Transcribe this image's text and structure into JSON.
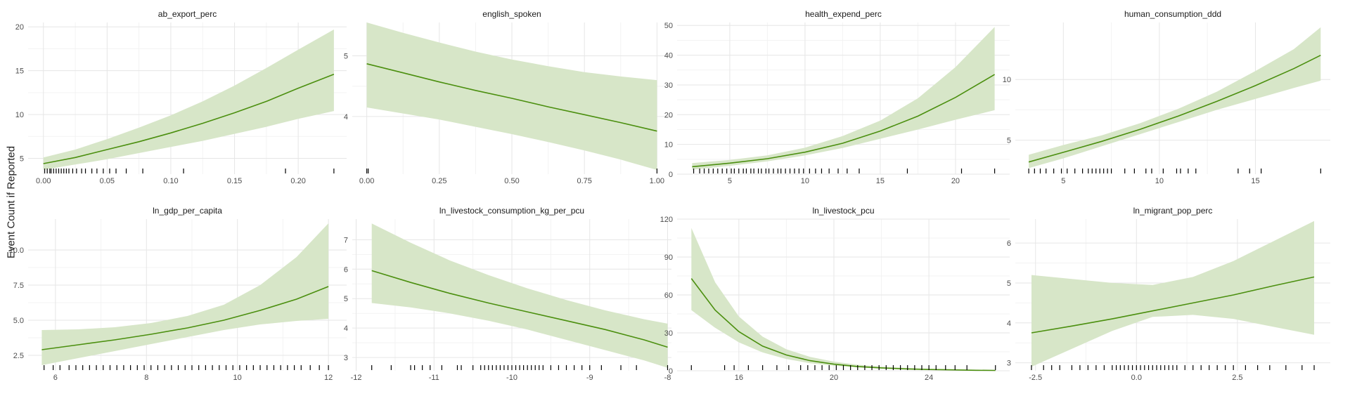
{
  "ylabel": "Event Count if Reported",
  "colors": {
    "line": "#4b8f0f",
    "band": "#d7e6c8",
    "grid_major": "#e6e6e6",
    "grid_minor": "#f3f3f3",
    "rug": "#000000",
    "text": "#4d4d4d",
    "title": "#1a1a1a"
  },
  "chart_data": [
    {
      "type": "line",
      "title": "ab_export_perc",
      "xlim": [
        -0.012,
        0.238
      ],
      "ylim": [
        3.2,
        20.5
      ],
      "xticks": [
        {
          "v": 0,
          "label": "0.00"
        },
        {
          "v": 0.05,
          "label": "0.05"
        },
        {
          "v": 0.1,
          "label": "0.10"
        },
        {
          "v": 0.15,
          "label": "0.15"
        },
        {
          "v": 0.2,
          "label": "0.20"
        }
      ],
      "yticks": [
        {
          "v": 5,
          "label": "5"
        },
        {
          "v": 10,
          "label": "10"
        },
        {
          "v": 15,
          "label": "15"
        },
        {
          "v": 20,
          "label": "20"
        }
      ],
      "x": [
        0,
        0.025,
        0.05,
        0.075,
        0.1,
        0.125,
        0.15,
        0.175,
        0.2,
        0.228
      ],
      "y": [
        4.4,
        5.1,
        6.0,
        6.9,
        7.9,
        9.0,
        10.2,
        11.5,
        13.0,
        14.6
      ],
      "lower": [
        3.7,
        4.3,
        4.9,
        5.6,
        6.3,
        7.0,
        7.8,
        8.6,
        9.5,
        10.4
      ],
      "upper": [
        5.1,
        6.0,
        7.2,
        8.5,
        9.9,
        11.5,
        13.3,
        15.3,
        17.4,
        19.7
      ],
      "rug": [
        0.001,
        0.003,
        0.005,
        0.006,
        0.008,
        0.01,
        0.012,
        0.014,
        0.016,
        0.018,
        0.02,
        0.023,
        0.026,
        0.03,
        0.033,
        0.038,
        0.042,
        0.047,
        0.052,
        0.057,
        0.065,
        0.078,
        0.11,
        0.19,
        0.228
      ]
    },
    {
      "type": "line",
      "title": "english_spoken",
      "xlim": [
        -0.05,
        1.05
      ],
      "ylim": [
        3.05,
        5.55
      ],
      "xticks": [
        {
          "v": 0,
          "label": "0.00"
        },
        {
          "v": 0.25,
          "label": "0.25"
        },
        {
          "v": 0.5,
          "label": "0.50"
        },
        {
          "v": 0.75,
          "label": "0.75"
        },
        {
          "v": 1,
          "label": "1.00"
        }
      ],
      "yticks": [
        {
          "v": 4,
          "label": "4"
        },
        {
          "v": 5,
          "label": "5"
        }
      ],
      "x": [
        0,
        0.125,
        0.25,
        0.375,
        0.5,
        0.625,
        0.75,
        0.875,
        1
      ],
      "y": [
        4.87,
        4.72,
        4.57,
        4.43,
        4.3,
        4.16,
        4.03,
        3.9,
        3.76
      ],
      "lower": [
        4.15,
        4.05,
        3.95,
        3.83,
        3.71,
        3.58,
        3.44,
        3.29,
        3.12
      ],
      "upper": [
        5.55,
        5.38,
        5.22,
        5.07,
        4.94,
        4.83,
        4.73,
        4.66,
        4.6
      ],
      "rug": [
        0,
        0.005,
        1
      ]
    },
    {
      "type": "line",
      "title": "health_expend_perc",
      "xlim": [
        1.5,
        23.6
      ],
      "ylim": [
        0,
        51
      ],
      "xticks": [
        {
          "v": 5,
          "label": "5"
        },
        {
          "v": 10,
          "label": "10"
        },
        {
          "v": 15,
          "label": "15"
        },
        {
          "v": 20,
          "label": "20"
        }
      ],
      "yticks": [
        {
          "v": 0,
          "label": "0"
        },
        {
          "v": 10,
          "label": "10"
        },
        {
          "v": 20,
          "label": "20"
        },
        {
          "v": 30,
          "label": "30"
        },
        {
          "v": 40,
          "label": "40"
        },
        {
          "v": 50,
          "label": "50"
        }
      ],
      "x": [
        2.5,
        5,
        7.5,
        10,
        12.5,
        15,
        17.5,
        20,
        22.6
      ],
      "y": [
        2.5,
        3.7,
        5.2,
        7.4,
        10.4,
        14.5,
        19.5,
        25.8,
        33.5
      ],
      "lower": [
        1.5,
        2.8,
        4.3,
        6.3,
        8.8,
        11.9,
        15.0,
        18.3,
        21.5
      ],
      "upper": [
        3.7,
        4.8,
        6.3,
        8.9,
        12.8,
        18.0,
        25.5,
        36.0,
        49.5
      ],
      "rug": [
        2.6,
        3.0,
        3.3,
        3.6,
        3.9,
        4.2,
        4.5,
        4.8,
        5.1,
        5.3,
        5.6,
        5.9,
        6.1,
        6.4,
        6.6,
        6.9,
        7.1,
        7.4,
        7.6,
        7.9,
        8.2,
        8.4,
        8.7,
        9.0,
        9.3,
        9.6,
        9.9,
        10.3,
        10.7,
        11.1,
        11.6,
        12.2,
        12.8,
        13.6,
        16.8,
        20.4,
        22.6
      ]
    },
    {
      "type": "line",
      "title": "human_consumption_ddd",
      "xlim": [
        2.5,
        18.9
      ],
      "ylim": [
        2.2,
        14.7
      ],
      "xticks": [
        {
          "v": 5,
          "label": "5"
        },
        {
          "v": 10,
          "label": "10"
        },
        {
          "v": 15,
          "label": "15"
        }
      ],
      "yticks": [
        {
          "v": 5,
          "label": "5"
        },
        {
          "v": 10,
          "label": "10"
        }
      ],
      "x": [
        3.2,
        5,
        7,
        9,
        11,
        13,
        15,
        17,
        18.4
      ],
      "y": [
        3.2,
        4.0,
        4.9,
        5.9,
        7.0,
        8.2,
        9.5,
        10.9,
        12.0
      ],
      "lower": [
        2.7,
        3.5,
        4.5,
        5.5,
        6.5,
        7.5,
        8.4,
        9.3,
        9.9
      ],
      "upper": [
        3.8,
        4.6,
        5.4,
        6.4,
        7.6,
        9.0,
        10.7,
        12.5,
        14.3
      ],
      "rug": [
        3.2,
        3.5,
        3.8,
        4.1,
        4.5,
        4.9,
        5.2,
        5.6,
        6.0,
        6.3,
        6.5,
        6.7,
        6.9,
        7.1,
        7.3,
        7.5,
        8.2,
        8.7,
        9.3,
        9.6,
        10.2,
        10.9,
        11.1,
        11.5,
        11.9,
        14.1,
        14.7,
        15.3,
        18.4
      ]
    },
    {
      "type": "line",
      "title": "ln_gdp_per_capita",
      "xlim": [
        5.4,
        12.4
      ],
      "ylim": [
        1.4,
        12.2
      ],
      "xticks": [
        {
          "v": 6,
          "label": "6"
        },
        {
          "v": 8,
          "label": "8"
        },
        {
          "v": 10,
          "label": "10"
        },
        {
          "v": 12,
          "label": "12"
        }
      ],
      "yticks": [
        {
          "v": 2.5,
          "label": "2.5"
        },
        {
          "v": 5,
          "label": "5.0"
        },
        {
          "v": 7.5,
          "label": "7.5"
        },
        {
          "v": 10,
          "label": "10.0"
        }
      ],
      "x": [
        5.7,
        6.5,
        7.3,
        8.1,
        8.9,
        9.7,
        10.5,
        11.3,
        12
      ],
      "y": [
        2.9,
        3.25,
        3.6,
        4.0,
        4.45,
        5.0,
        5.7,
        6.5,
        7.4
      ],
      "lower": [
        1.8,
        2.3,
        2.8,
        3.3,
        3.8,
        4.3,
        4.7,
        4.95,
        5.1
      ],
      "upper": [
        4.3,
        4.35,
        4.5,
        4.8,
        5.3,
        6.1,
        7.5,
        9.5,
        11.9
      ],
      "rug": [
        5.75,
        5.95,
        6.1,
        6.3,
        6.45,
        6.6,
        6.75,
        6.9,
        7.05,
        7.2,
        7.35,
        7.5,
        7.65,
        7.8,
        7.95,
        8.1,
        8.25,
        8.4,
        8.55,
        8.7,
        8.85,
        9.0,
        9.15,
        9.3,
        9.45,
        9.6,
        9.75,
        9.9,
        10.05,
        10.2,
        10.35,
        10.5,
        10.65,
        10.8,
        10.95,
        11.1,
        11.25,
        11.4,
        11.6,
        11.8,
        12.0
      ]
    },
    {
      "type": "line",
      "title": "ln_livestock_consumption_kg_per_pcu",
      "xlim": [
        -12.05,
        -7.95
      ],
      "ylim": [
        2.55,
        7.7
      ],
      "xticks": [
        {
          "v": -12,
          "label": "-12"
        },
        {
          "v": -11,
          "label": "-11"
        },
        {
          "v": -10,
          "label": "-10"
        },
        {
          "v": -9,
          "label": "-9"
        },
        {
          "v": -8,
          "label": "-8"
        }
      ],
      "yticks": [
        {
          "v": 3,
          "label": "3"
        },
        {
          "v": 4,
          "label": "4"
        },
        {
          "v": 5,
          "label": "5"
        },
        {
          "v": 6,
          "label": "6"
        },
        {
          "v": 7,
          "label": "7"
        }
      ],
      "x": [
        -11.8,
        -11.3,
        -10.8,
        -10.3,
        -9.8,
        -9.3,
        -8.8,
        -8.3,
        -8.0
      ],
      "y": [
        5.95,
        5.55,
        5.18,
        4.85,
        4.55,
        4.25,
        3.95,
        3.6,
        3.35
      ],
      "lower": [
        4.85,
        4.7,
        4.5,
        4.25,
        3.95,
        3.6,
        3.25,
        2.9,
        2.65
      ],
      "upper": [
        7.55,
        6.9,
        6.3,
        5.8,
        5.35,
        4.95,
        4.6,
        4.3,
        4.15
      ],
      "rug": [
        -11.8,
        -11.55,
        -11.3,
        -11.25,
        -11.15,
        -11.05,
        -10.9,
        -10.7,
        -10.65,
        -10.5,
        -10.4,
        -10.35,
        -10.3,
        -10.25,
        -10.2,
        -10.15,
        -10.1,
        -10.05,
        -10.0,
        -9.95,
        -9.9,
        -9.85,
        -9.8,
        -9.75,
        -9.7,
        -9.65,
        -9.6,
        -9.5,
        -9.4,
        -9.3,
        -9.2,
        -9.1,
        -9.0,
        -8.85,
        -8.6,
        -8.4,
        -8.0
      ]
    },
    {
      "type": "line",
      "title": "ln_livestock_pcu",
      "xlim": [
        13.4,
        27.4
      ],
      "ylim": [
        0,
        120
      ],
      "xticks": [
        {
          "v": 16,
          "label": "16"
        },
        {
          "v": 20,
          "label": "20"
        },
        {
          "v": 24,
          "label": "24"
        }
      ],
      "yticks": [
        {
          "v": 0,
          "label": "0"
        },
        {
          "v": 30,
          "label": "30"
        },
        {
          "v": 60,
          "label": "60"
        },
        {
          "v": 90,
          "label": "90"
        },
        {
          "v": 120,
          "label": "120"
        }
      ],
      "x": [
        14,
        15,
        16,
        17,
        18,
        19,
        20,
        21,
        22,
        23,
        24,
        25,
        26,
        26.8
      ],
      "y": [
        73,
        48,
        31,
        19.5,
        12.5,
        8,
        5.2,
        3.4,
        2.3,
        1.5,
        1,
        0.7,
        0.4,
        0.3
      ],
      "lower": [
        48,
        34,
        22.5,
        14.5,
        9.3,
        6,
        4,
        2.6,
        1.7,
        1.1,
        0.7,
        0.4,
        0.25,
        0.15
      ],
      "upper": [
        113,
        70,
        43,
        27,
        17,
        11,
        7.2,
        4.8,
        3.3,
        2.3,
        1.6,
        1.1,
        0.8,
        0.6
      ],
      "rug": [
        14,
        15.4,
        15.8,
        16.4,
        17,
        17.6,
        18.1,
        18.6,
        18.9,
        19.2,
        19.5,
        19.8,
        20.1,
        20.4,
        20.7,
        21.0,
        21.3,
        21.6,
        21.9,
        22.2,
        22.5,
        22.8,
        23.1,
        23.4,
        23.7,
        24.0,
        24.3,
        24.7,
        25.1,
        25.6,
        26.8
      ]
    },
    {
      "type": "line",
      "title": "ln_migrant_pop_perc",
      "xlim": [
        -3.0,
        4.8
      ],
      "ylim": [
        2.8,
        6.6
      ],
      "xticks": [
        {
          "v": -2.5,
          "label": "-2.5"
        },
        {
          "v": 0,
          "label": "0.0"
        },
        {
          "v": 2.5,
          "label": "2.5"
        }
      ],
      "yticks": [
        {
          "v": 3,
          "label": "3"
        },
        {
          "v": 4,
          "label": "4"
        },
        {
          "v": 5,
          "label": "5"
        },
        {
          "v": 6,
          "label": "6"
        }
      ],
      "x": [
        -2.6,
        -1.6,
        -0.6,
        0.4,
        1.4,
        2.4,
        3.4,
        4.4
      ],
      "y": [
        3.75,
        3.92,
        4.1,
        4.3,
        4.5,
        4.7,
        4.93,
        5.15
      ],
      "lower": [
        2.9,
        3.35,
        3.8,
        4.15,
        4.2,
        4.1,
        3.9,
        3.7
      ],
      "upper": [
        5.2,
        5.1,
        5.0,
        4.95,
        5.15,
        5.55,
        6.05,
        6.55
      ],
      "rug": [
        -2.6,
        -2.3,
        -2.1,
        -1.9,
        -1.6,
        -1.4,
        -1.2,
        -1.0,
        -0.8,
        -0.6,
        -0.5,
        -0.4,
        -0.3,
        -0.2,
        -0.1,
        0.0,
        0.1,
        0.2,
        0.3,
        0.4,
        0.5,
        0.6,
        0.7,
        0.8,
        0.9,
        1.0,
        1.2,
        1.4,
        1.6,
        1.8,
        2.0,
        2.2,
        2.4,
        2.7,
        3.0,
        3.3,
        3.7,
        4.1,
        4.4
      ]
    }
  ]
}
